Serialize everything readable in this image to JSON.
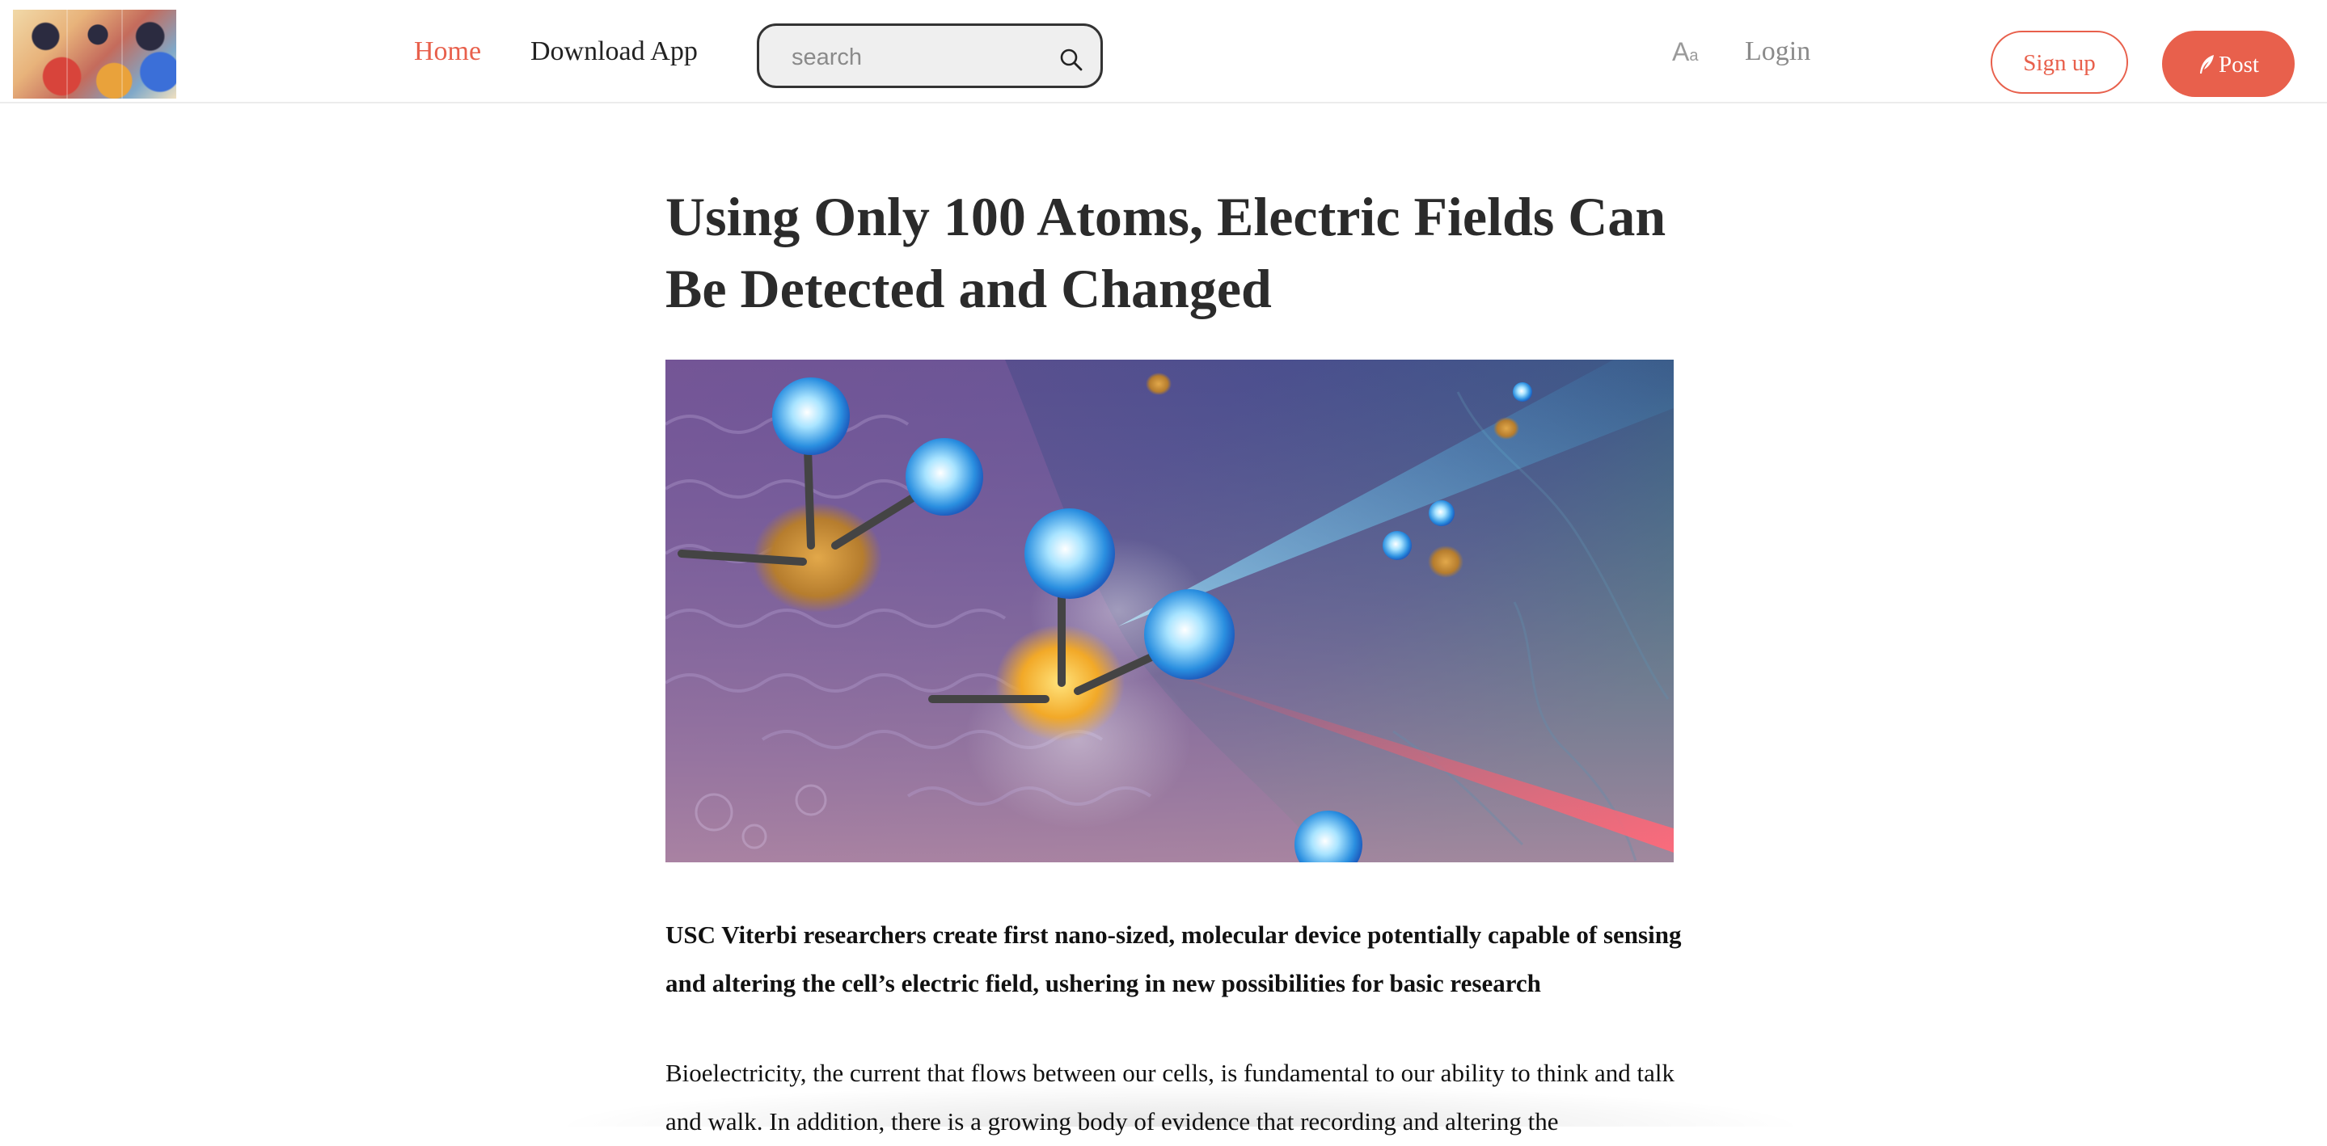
{
  "header": {
    "nav": {
      "home": "Home",
      "download_app": "Download App"
    },
    "search": {
      "placeholder": "search",
      "value": ""
    },
    "font_size": {
      "big": "A",
      "small": "a"
    },
    "login": "Login",
    "signup": "Sign up",
    "post": "Post"
  },
  "article": {
    "title": "Using Only 100 Atoms, Electric Fields Can Be Detected and Changed",
    "subtitle": "USC Viterbi researchers create first nano-sized, molecular device potentially capable of sensing and altering the cell’s electric field, ushering in new possibilities for basic research",
    "body": "Bioelectricity, the current that flows between our cells, is fundamental to our ability to think and talk and walk. In addition, there is a growing body of evidence that recording and altering the"
  },
  "colors": {
    "accent": "#e8604c",
    "text": "#222222",
    "muted": "#8a8a8a"
  }
}
